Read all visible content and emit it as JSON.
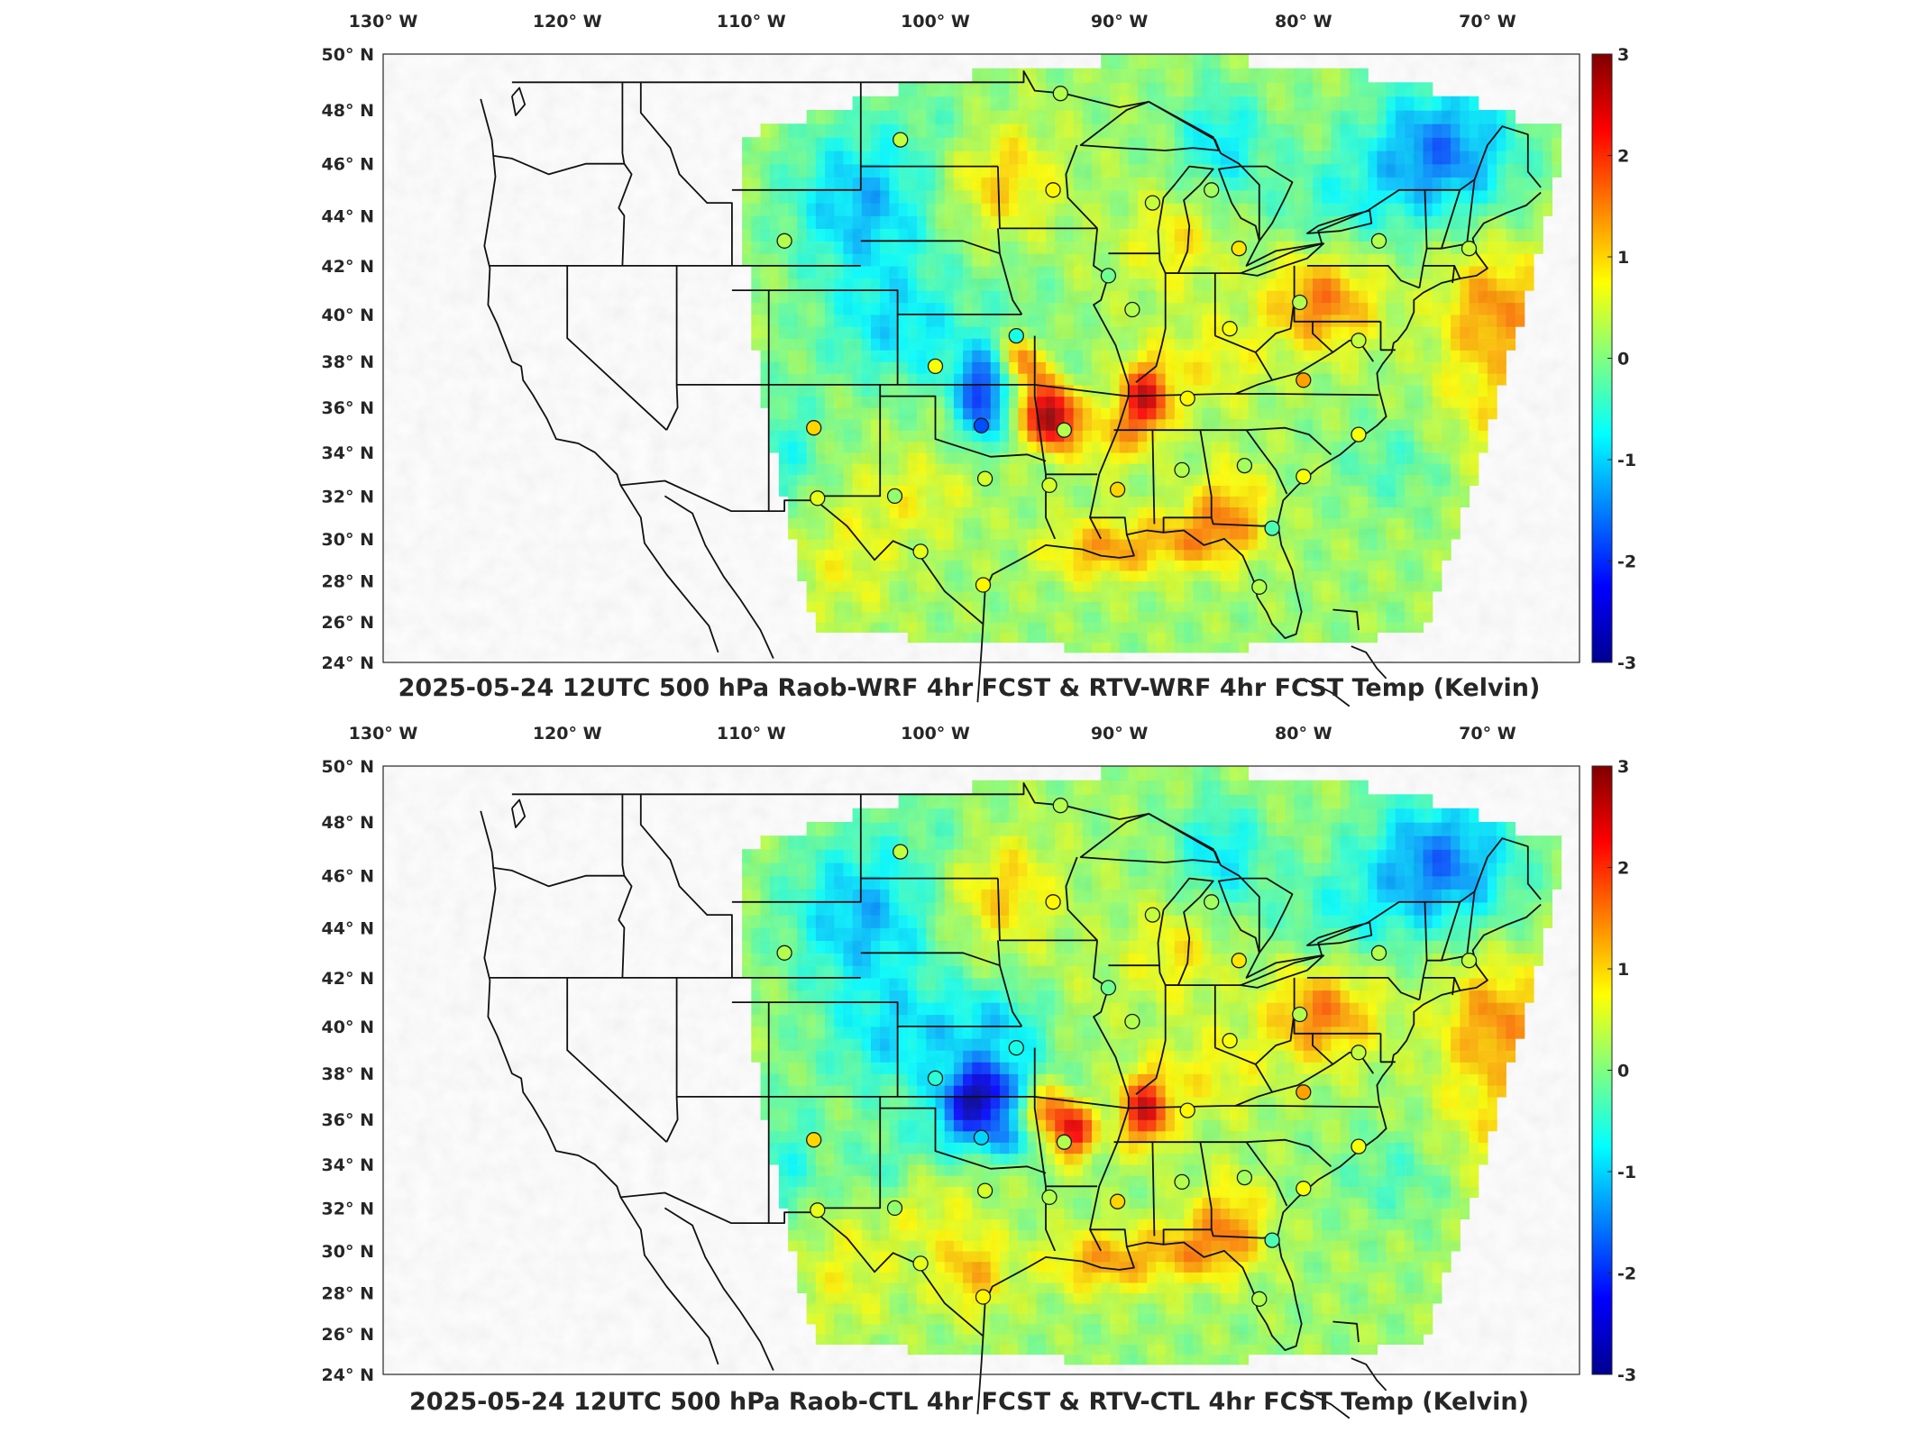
{
  "panels": [
    {
      "id": "wrf",
      "title": "2025-05-24 12UTC 500 hPa Raob-WRF 4hr FCST & RTV-WRF 4hr FCST Temp (Kelvin)",
      "sites": [
        {
          "lon": -101.9,
          "lat": 46.9,
          "v": 0.4
        },
        {
          "lon": -93.2,
          "lat": 48.6,
          "v": 0.3
        },
        {
          "lon": -93.6,
          "lat": 45.0,
          "v": 0.8
        },
        {
          "lon": -88.2,
          "lat": 44.5,
          "v": 0.4
        },
        {
          "lon": -85.0,
          "lat": 45.0,
          "v": 0.2
        },
        {
          "lon": -83.5,
          "lat": 42.7,
          "v": 0.9
        },
        {
          "lon": -75.9,
          "lat": 43.0,
          "v": 0.3
        },
        {
          "lon": -71.0,
          "lat": 42.7,
          "v": 0.4
        },
        {
          "lon": -108.2,
          "lat": 43.0,
          "v": 0.3
        },
        {
          "lon": -90.6,
          "lat": 41.6,
          "v": -0.1
        },
        {
          "lon": -89.3,
          "lat": 40.2,
          "v": 0.3
        },
        {
          "lon": -95.6,
          "lat": 39.1,
          "v": -0.6
        },
        {
          "lon": -84.0,
          "lat": 39.4,
          "v": 0.7
        },
        {
          "lon": -80.2,
          "lat": 40.5,
          "v": 0.3
        },
        {
          "lon": -100.0,
          "lat": 37.8,
          "v": 0.7
        },
        {
          "lon": -86.3,
          "lat": 36.4,
          "v": 0.8
        },
        {
          "lon": -80.0,
          "lat": 37.2,
          "v": 1.3
        },
        {
          "lon": -97.5,
          "lat": 35.2,
          "v": -1.8
        },
        {
          "lon": -93.0,
          "lat": 35.0,
          "v": 0.3
        },
        {
          "lon": -77.0,
          "lat": 34.8,
          "v": 0.7
        },
        {
          "lon": -106.6,
          "lat": 35.1,
          "v": 1.0
        },
        {
          "lon": -97.3,
          "lat": 32.8,
          "v": 0.5
        },
        {
          "lon": -93.8,
          "lat": 32.5,
          "v": 0.5
        },
        {
          "lon": -90.1,
          "lat": 32.3,
          "v": 1.0
        },
        {
          "lon": -86.6,
          "lat": 33.2,
          "v": 0.3
        },
        {
          "lon": -83.2,
          "lat": 33.4,
          "v": 0.2
        },
        {
          "lon": -80.0,
          "lat": 32.9,
          "v": 0.7
        },
        {
          "lon": -102.2,
          "lat": 32.0,
          "v": 0.1
        },
        {
          "lon": -106.4,
          "lat": 31.9,
          "v": 0.6
        },
        {
          "lon": -100.8,
          "lat": 29.4,
          "v": 0.6
        },
        {
          "lon": -97.4,
          "lat": 27.8,
          "v": 0.8
        },
        {
          "lon": -81.7,
          "lat": 30.5,
          "v": -0.3
        },
        {
          "lon": -82.4,
          "lat": 27.7,
          "v": 0.3
        },
        {
          "lon": -77.0,
          "lat": 38.9,
          "v": 0.4
        }
      ]
    },
    {
      "id": "ctl",
      "title": "2025-05-24 12UTC 500 hPa Raob-CTL 4hr FCST & RTV-CTL 4hr FCST Temp (Kelvin)",
      "sites": [
        {
          "lon": -101.9,
          "lat": 46.9,
          "v": 0.4
        },
        {
          "lon": -93.2,
          "lat": 48.6,
          "v": 0.3
        },
        {
          "lon": -93.6,
          "lat": 45.0,
          "v": 0.8
        },
        {
          "lon": -88.2,
          "lat": 44.5,
          "v": 0.4
        },
        {
          "lon": -85.0,
          "lat": 45.0,
          "v": 0.2
        },
        {
          "lon": -83.5,
          "lat": 42.7,
          "v": 0.9
        },
        {
          "lon": -75.9,
          "lat": 43.0,
          "v": 0.3
        },
        {
          "lon": -71.0,
          "lat": 42.7,
          "v": 0.4
        },
        {
          "lon": -108.2,
          "lat": 43.0,
          "v": 0.3
        },
        {
          "lon": -90.6,
          "lat": 41.6,
          "v": -0.1
        },
        {
          "lon": -89.3,
          "lat": 40.2,
          "v": 0.3
        },
        {
          "lon": -95.6,
          "lat": 39.1,
          "v": -0.6
        },
        {
          "lon": -84.0,
          "lat": 39.4,
          "v": 0.7
        },
        {
          "lon": -80.2,
          "lat": 40.5,
          "v": 0.3
        },
        {
          "lon": -100.0,
          "lat": 37.8,
          "v": -0.5
        },
        {
          "lon": -86.3,
          "lat": 36.4,
          "v": 0.8
        },
        {
          "lon": -80.0,
          "lat": 37.2,
          "v": 1.3
        },
        {
          "lon": -97.5,
          "lat": 35.2,
          "v": -1.0
        },
        {
          "lon": -93.0,
          "lat": 35.0,
          "v": 0.3
        },
        {
          "lon": -77.0,
          "lat": 34.8,
          "v": 0.7
        },
        {
          "lon": -106.6,
          "lat": 35.1,
          "v": 1.0
        },
        {
          "lon": -97.3,
          "lat": 32.8,
          "v": 0.5
        },
        {
          "lon": -93.8,
          "lat": 32.5,
          "v": 0.3
        },
        {
          "lon": -90.1,
          "lat": 32.3,
          "v": 1.0
        },
        {
          "lon": -86.6,
          "lat": 33.2,
          "v": 0.3
        },
        {
          "lon": -83.2,
          "lat": 33.4,
          "v": 0.2
        },
        {
          "lon": -80.0,
          "lat": 32.9,
          "v": 0.7
        },
        {
          "lon": -102.2,
          "lat": 32.0,
          "v": 0.1
        },
        {
          "lon": -106.4,
          "lat": 31.9,
          "v": 0.6
        },
        {
          "lon": -100.8,
          "lat": 29.4,
          "v": 0.6
        },
        {
          "lon": -97.4,
          "lat": 27.8,
          "v": 0.8
        },
        {
          "lon": -81.7,
          "lat": 30.5,
          "v": -0.3
        },
        {
          "lon": -82.4,
          "lat": 27.7,
          "v": 0.3
        },
        {
          "lon": -77.0,
          "lat": 38.9,
          "v": 0.4
        }
      ]
    }
  ],
  "lon_ticks": [
    {
      "lon": -130,
      "label": "130° W"
    },
    {
      "lon": -120,
      "label": "120° W"
    },
    {
      "lon": -110,
      "label": "110° W"
    },
    {
      "lon": -100,
      "label": "100° W"
    },
    {
      "lon": -90,
      "label": "90° W"
    },
    {
      "lon": -80,
      "label": "80° W"
    },
    {
      "lon": -70,
      "label": "70° W"
    }
  ],
  "lat_ticks": [
    {
      "lat": 50,
      "label": "50° N"
    },
    {
      "lat": 48,
      "label": "48° N"
    },
    {
      "lat": 46,
      "label": "46° N"
    },
    {
      "lat": 44,
      "label": "44° N"
    },
    {
      "lat": 42,
      "label": "42° N"
    },
    {
      "lat": 40,
      "label": "40° N"
    },
    {
      "lat": 38,
      "label": "38° N"
    },
    {
      "lat": 36,
      "label": "36° N"
    },
    {
      "lat": 34,
      "label": "34° N"
    },
    {
      "lat": 32,
      "label": "32° N"
    },
    {
      "lat": 30,
      "label": "30° N"
    },
    {
      "lat": 28,
      "label": "28° N"
    },
    {
      "lat": 26,
      "label": "26° N"
    },
    {
      "lat": 24,
      "label": "24° N"
    }
  ],
  "colorbar": {
    "colormap": "jet",
    "min": -3,
    "max": 3,
    "ticks": [
      {
        "value": 3,
        "label": "3"
      },
      {
        "value": 2,
        "label": "2"
      },
      {
        "value": 1,
        "label": "1"
      },
      {
        "value": 0,
        "label": "0"
      },
      {
        "value": -1,
        "label": "-1"
      },
      {
        "value": -2,
        "label": "-2"
      },
      {
        "value": -3,
        "label": "-3"
      }
    ]
  },
  "map_extent": {
    "lon_min": -130,
    "lon_max": -65,
    "lat_min": 24,
    "lat_max": 50
  }
}
